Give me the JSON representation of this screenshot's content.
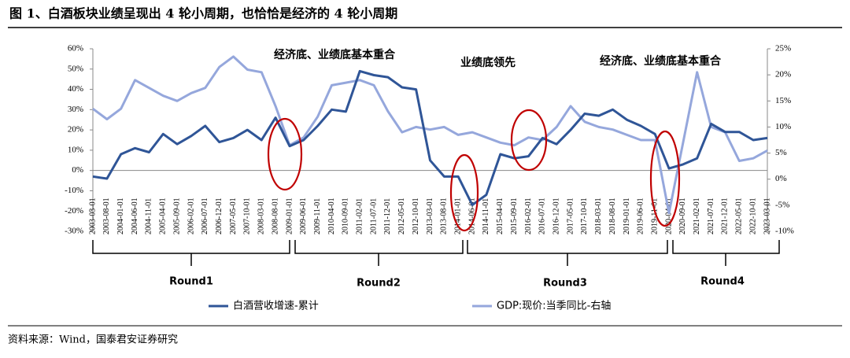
{
  "chart_data": {
    "type": "line",
    "title": "图 1、白酒板块业绩呈现出 4 轮小周期，也恰恰是经济的 4 轮小周期",
    "categories": [
      "2003-03-01",
      "2003-08-01",
      "2004-01-01",
      "2004-06-01",
      "2004-11-01",
      "2005-04-01",
      "2005-09-01",
      "2006-02-01",
      "2006-07-01",
      "2006-12-01",
      "2007-05-01",
      "2007-10-01",
      "2008-03-01",
      "2008-08-01",
      "2009-01-01",
      "2009-06-01",
      "2009-11-01",
      "2010-04-01",
      "2010-09-01",
      "2011-02-01",
      "2011-07-01",
      "2011-12-01",
      "2012-05-01",
      "2012-10-01",
      "2013-03-01",
      "2013-08-01",
      "2014-01-01",
      "2014-06-01",
      "2014-11-01",
      "2015-04-01",
      "2015-09-01",
      "2016-02-01",
      "2016-07-01",
      "2016-12-01",
      "2017-05-01",
      "2017-10-01",
      "2018-03-01",
      "2018-08-01",
      "2019-01-01",
      "2019-06-01",
      "2019-11-01",
      "2020-04-01",
      "2020-09-01",
      "2021-02-01",
      "2021-07-01",
      "2021-12-01",
      "2022-05-01",
      "2022-10-01",
      "2023-03-01"
    ],
    "series": [
      {
        "name": "白酒营收增速-累计",
        "color": "#2f5597",
        "axis": "y",
        "values": [
          -3,
          -4,
          8,
          11,
          9,
          18,
          13,
          17,
          22,
          14,
          16,
          20,
          15,
          26,
          12,
          15,
          22,
          30,
          29,
          49,
          47,
          46,
          41,
          40,
          5,
          -3,
          -3,
          -17,
          -12,
          8,
          6,
          7,
          16,
          13,
          20,
          28,
          27,
          30,
          25,
          22,
          18,
          1,
          3,
          6,
          23,
          19,
          19,
          15,
          16
        ]
      },
      {
        "name": "GDP:现价:当季同比-右轴",
        "color": "#95a7dc",
        "axis": "y2",
        "values": [
          13.5,
          11.5,
          13.5,
          19,
          17.5,
          16,
          15,
          16.5,
          17.5,
          21.5,
          23.5,
          21,
          20.5,
          14,
          6.5,
          8,
          12,
          18,
          18.5,
          19,
          18,
          13,
          9,
          10,
          9.5,
          10,
          8.5,
          9,
          8,
          7,
          6.5,
          8,
          7.5,
          10,
          14,
          11,
          10,
          9.5,
          8.5,
          7.5,
          7.5,
          -6.5,
          7,
          20.5,
          10,
          9,
          3.5,
          4,
          5.5
        ]
      }
    ],
    "ylim": [
      -30,
      60
    ],
    "yticks": [
      {
        "value": -30,
        "label": "-30%"
      },
      {
        "value": -20,
        "label": "-20%"
      },
      {
        "value": -10,
        "label": "-10%"
      },
      {
        "value": 0,
        "label": "0%"
      },
      {
        "value": 10,
        "label": "10%"
      },
      {
        "value": 20,
        "label": "20%"
      },
      {
        "value": 30,
        "label": "30%"
      },
      {
        "value": 40,
        "label": "40%"
      },
      {
        "value": 50,
        "label": "50%"
      },
      {
        "value": 60,
        "label": "60%"
      }
    ],
    "y2lim": [
      -10,
      25
    ],
    "y2ticks": [
      {
        "value": -10,
        "label": "-10%"
      },
      {
        "value": -5,
        "label": "-5%"
      },
      {
        "value": 0,
        "label": "0%"
      },
      {
        "value": 5,
        "label": "5%"
      },
      {
        "value": 10,
        "label": "10%"
      },
      {
        "value": 15,
        "label": "15%"
      },
      {
        "value": 20,
        "label": "20%"
      },
      {
        "value": 25,
        "label": "25%"
      }
    ],
    "annotations": [
      "经济底、业绩底基本重合",
      "业绩底领先",
      "经济底、业绩底基本重合"
    ],
    "rounds": [
      "Round1",
      "Round2",
      "Round3",
      "Round4"
    ],
    "source": "资料来源：Wind，国泰君安证券研究"
  }
}
